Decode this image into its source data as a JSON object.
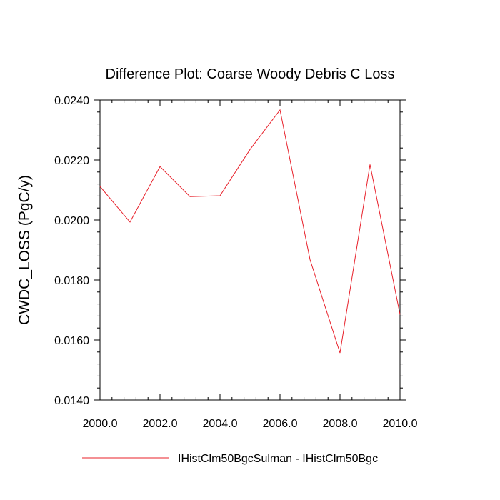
{
  "chart_data": {
    "type": "line",
    "title": "Difference Plot: Coarse Woody Debris C Loss",
    "ylabel": "CWDC_LOSS  (PgC/y)",
    "xlabel": "",
    "xlim": [
      2000,
      2010
    ],
    "ylim": [
      0.014,
      0.024
    ],
    "xticks": [
      2000,
      2002,
      2004,
      2006,
      2008,
      2010
    ],
    "xtick_labels": [
      "2000.0",
      "2002.0",
      "2004.0",
      "2006.0",
      "2008.0",
      "2010.0"
    ],
    "yticks": [
      0.014,
      0.016,
      0.018,
      0.02,
      0.022,
      0.024
    ],
    "ytick_labels": [
      "0.0140",
      "0.0160",
      "0.0180",
      "0.0200",
      "0.0220",
      "0.0240"
    ],
    "grid": false,
    "legend_position": "bottom",
    "series": [
      {
        "name": "IHistClm50BgcSulman - IHistClm50Bgc",
        "color": "#e8202a",
        "x": [
          2000,
          2001,
          2002,
          2003,
          2004,
          2005,
          2006,
          2007,
          2008,
          2009,
          2010
        ],
        "values": [
          0.02112,
          0.01993,
          0.02178,
          0.02078,
          0.02081,
          0.02235,
          0.02367,
          0.01868,
          0.01557,
          0.02185,
          0.01685
        ]
      }
    ]
  }
}
